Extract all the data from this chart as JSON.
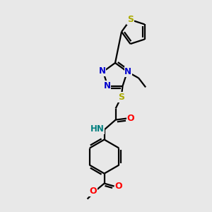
{
  "background_color": "#e8e8e8",
  "atom_colors": {
    "C": "#000000",
    "N": "#0000cc",
    "O": "#ff0000",
    "S_ring": "#aaaa00",
    "S_linker": "#aaaa00",
    "H": "#008080"
  },
  "bond_color": "#000000",
  "bond_width": 1.6,
  "figsize": [
    3.0,
    3.0
  ],
  "dpi": 100,
  "xlim": [
    0,
    300
  ],
  "ylim": [
    0,
    300
  ]
}
